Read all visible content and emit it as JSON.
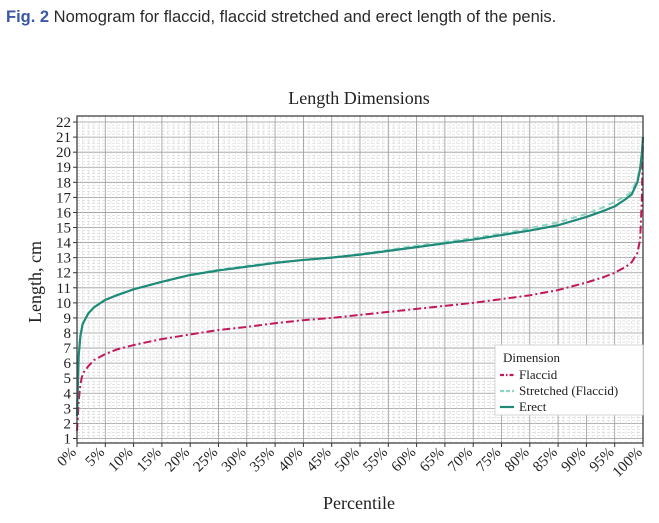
{
  "caption": {
    "label": "Fig. 2",
    "text": " Nomogram for flaccid, flaccid stretched and erect length of the penis."
  },
  "chart_data": {
    "type": "line",
    "title": "Length Dimensions",
    "xlabel": "Percentile",
    "ylabel": "Length, cm",
    "xlim": [
      0,
      100
    ],
    "ylim": [
      1,
      22
    ],
    "grid": true,
    "x_tick_labels": [
      "0%",
      "5%",
      "10%",
      "15%",
      "20%",
      "25%",
      "30%",
      "35%",
      "40%",
      "45%",
      "50%",
      "55%",
      "60%",
      "65%",
      "70%",
      "75%",
      "80%",
      "85%",
      "90%",
      "95%",
      "100%"
    ],
    "y_tick_labels": [
      "1",
      "2",
      "3",
      "4",
      "5",
      "6",
      "7",
      "8",
      "9",
      "10",
      "11",
      "12",
      "13",
      "14",
      "15",
      "16",
      "17",
      "18",
      "19",
      "20",
      "21",
      "22"
    ],
    "legend": {
      "title": "Dimension",
      "placement": "bottom-right"
    },
    "series": [
      {
        "name": "Flaccid",
        "color": "#c2185b",
        "dash": "dashdot",
        "x": [
          0,
          0.3,
          0.6,
          1,
          2,
          3,
          5,
          7,
          10,
          15,
          20,
          25,
          30,
          35,
          40,
          45,
          50,
          55,
          60,
          65,
          70,
          75,
          80,
          85,
          90,
          93,
          95,
          97,
          98,
          99,
          99.5,
          99.8,
          100
        ],
        "y": [
          1.5,
          3.5,
          4.6,
          5.3,
          5.8,
          6.2,
          6.6,
          6.9,
          7.2,
          7.6,
          7.9,
          8.2,
          8.4,
          8.65,
          8.85,
          9.0,
          9.2,
          9.4,
          9.6,
          9.8,
          10.0,
          10.25,
          10.5,
          10.85,
          11.35,
          11.7,
          12.0,
          12.4,
          12.7,
          13.3,
          14.2,
          17.0,
          21.0
        ]
      },
      {
        "name": "Stretched (Flaccid)",
        "color": "#8fd5c4",
        "dash": "dashed",
        "x": [
          0,
          0.3,
          0.6,
          1,
          2,
          3,
          5,
          7,
          10,
          15,
          20,
          25,
          30,
          35,
          40,
          45,
          50,
          55,
          60,
          65,
          70,
          75,
          80,
          85,
          90,
          93,
          95,
          97,
          98,
          99,
          99.5,
          99.8,
          100
        ],
        "y": [
          2.5,
          6.5,
          7.8,
          8.6,
          9.3,
          9.7,
          10.2,
          10.5,
          10.9,
          11.4,
          11.85,
          12.2,
          12.45,
          12.7,
          12.85,
          13.0,
          13.25,
          13.5,
          13.8,
          14.05,
          14.3,
          14.6,
          14.95,
          15.35,
          15.9,
          16.35,
          16.7,
          17.1,
          17.4,
          18.2,
          19.0,
          20.0,
          21.0
        ]
      },
      {
        "name": "Erect",
        "color": "#1f8a78",
        "dash": "solid",
        "x": [
          0,
          0.3,
          0.6,
          1,
          2,
          3,
          5,
          7,
          10,
          15,
          20,
          25,
          30,
          35,
          40,
          45,
          50,
          55,
          60,
          65,
          70,
          75,
          80,
          85,
          90,
          93,
          95,
          97,
          98,
          99,
          99.5,
          99.8,
          100
        ],
        "y": [
          2.5,
          6.5,
          7.8,
          8.6,
          9.3,
          9.7,
          10.2,
          10.5,
          10.9,
          11.4,
          11.85,
          12.15,
          12.4,
          12.65,
          12.85,
          13.0,
          13.2,
          13.45,
          13.7,
          13.95,
          14.2,
          14.5,
          14.8,
          15.15,
          15.7,
          16.1,
          16.4,
          16.9,
          17.2,
          18.0,
          18.9,
          19.9,
          21.0
        ]
      }
    ]
  }
}
